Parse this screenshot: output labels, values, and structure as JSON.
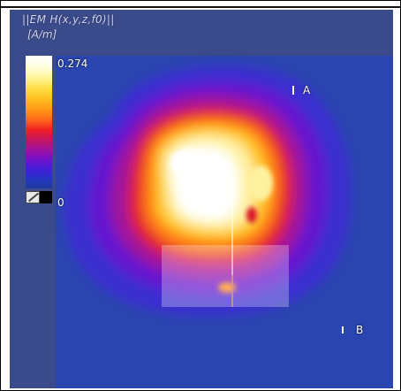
{
  "title": "||EM H(x,y,z,f0)||",
  "units": "[A/m]",
  "colorbar": {
    "max": "0.274",
    "min": "0"
  },
  "markers": {
    "a": "A",
    "b": "B"
  },
  "colors": {
    "background": "#2a3fa8",
    "colormap": [
      "#ffffff",
      "#fff7a0",
      "#ffc21f",
      "#ff6a1a",
      "#ee1f25",
      "#b01487",
      "#6514cf",
      "#2635c4"
    ]
  }
}
